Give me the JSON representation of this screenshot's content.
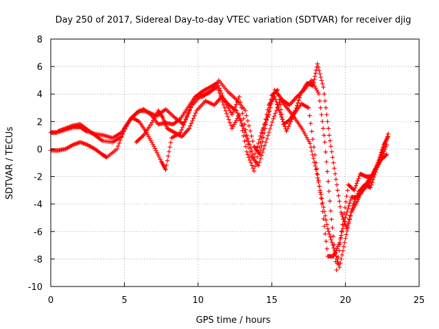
{
  "chart_data": {
    "type": "scatter",
    "title": "Day 250 of 2017, Sidereal Day-to-day VTEC variation (SDTVAR) for receiver djig",
    "xlabel": "GPS time / hours",
    "ylabel": "SDTVAR / TECUs",
    "xlim": [
      0,
      25
    ],
    "ylim": [
      -10,
      8
    ],
    "x_ticks": [
      "0",
      "5",
      "10",
      "15",
      "20",
      "25"
    ],
    "y_ticks": [
      "-10",
      "-8",
      "-6",
      "-4",
      "-2",
      "0",
      "2",
      "4",
      "6",
      "8"
    ],
    "grid": true,
    "marker": "+",
    "color": "#ff0000",
    "series": [
      {
        "name": "",
        "x": [
          0.0,
          0.4,
          1.0,
          1.6,
          2.0,
          2.4,
          3.0,
          3.6,
          4.2,
          4.8,
          5.3,
          5.8,
          6.3,
          6.8,
          7.3,
          7.8,
          8.3,
          8.8,
          9.3,
          9.8,
          10.3,
          10.8,
          11.3,
          11.8,
          12.3,
          12.8,
          13.3,
          13.8,
          14.3,
          14.8,
          15.2,
          15.7,
          16.2,
          16.7,
          17.2,
          17.7,
          18.2,
          18.6,
          19.0,
          19.4,
          19.8,
          20.2,
          20.6,
          21.0,
          21.4,
          21.8,
          22.2,
          22.6,
          22.9
        ],
        "y": [
          1.2,
          1.2,
          1.4,
          1.6,
          1.6,
          1.3,
          1.1,
          1.0,
          0.8,
          1.2,
          2.0,
          2.6,
          2.9,
          2.5,
          1.8,
          1.9,
          1.8,
          2.2,
          3.0,
          3.8,
          4.2,
          4.5,
          4.8,
          3.5,
          2.5,
          3.8,
          1.0,
          -0.6,
          1.2,
          2.5,
          4.3,
          3.6,
          3.2,
          3.8,
          4.3,
          5.0,
          4.0,
          0.5,
          -4.5,
          -8.8,
          -5.5,
          -2.6,
          -3.0,
          -1.8,
          -2.0,
          -2.0,
          -1.0,
          0.3,
          0.9
        ]
      },
      {
        "name": "",
        "x": [
          0.0,
          0.5,
          1.0,
          1.5,
          2.0,
          2.5,
          3.0,
          3.5,
          3.8,
          4.5,
          5.0,
          5.5,
          6.0,
          6.5,
          7.0,
          7.5,
          7.8,
          8.2,
          8.8,
          9.3,
          9.8,
          10.3,
          10.8,
          11.3,
          11.8,
          12.3,
          12.8,
          13.3,
          13.8,
          14.3,
          14.8,
          15.2,
          15.6,
          16.0,
          16.5,
          17.0,
          17.5,
          18.0,
          18.4,
          18.8,
          19.2,
          19.6,
          20.0,
          20.4,
          20.8,
          21.2,
          21.6,
          22.0,
          22.4,
          22.8
        ],
        "y": [
          -0.1,
          -0.1,
          0.0,
          0.3,
          0.5,
          0.3,
          0.0,
          -0.4,
          -0.6,
          0.0,
          1.5,
          2.3,
          2.0,
          1.2,
          0.2,
          -0.9,
          -1.5,
          0.8,
          1.2,
          2.5,
          3.8,
          3.8,
          4.2,
          4.5,
          3.0,
          1.5,
          2.5,
          -0.2,
          -1.6,
          0.8,
          3.2,
          3.8,
          2.5,
          1.3,
          2.5,
          3.3,
          3.0,
          -1.0,
          -4.0,
          -7.8,
          -7.8,
          -6.8,
          -5.0,
          -3.5,
          -3.5,
          -3.0,
          -2.5,
          -1.5,
          -0.8,
          -0.4
        ]
      },
      {
        "name": "",
        "x": [
          0.5,
          1.0,
          1.5,
          2.0,
          2.5,
          3.0,
          3.5,
          4.2,
          4.8,
          5.4,
          6.0,
          6.6,
          7.2,
          7.8,
          8.4,
          9.0,
          9.6,
          10.2,
          10.8,
          11.4,
          12.0,
          12.6,
          13.2,
          13.8,
          14.2,
          14.6,
          15.0,
          15.4,
          15.8,
          16.2,
          16.6,
          17.0,
          17.4,
          17.8,
          18.1,
          18.5,
          18.9,
          19.3,
          19.7,
          20.1,
          20.5,
          20.9,
          21.3,
          21.7,
          22.1,
          22.5,
          22.9
        ],
        "y": [
          1.3,
          1.5,
          1.7,
          1.8,
          1.4,
          1.0,
          0.6,
          0.5,
          0.9,
          2.2,
          2.8,
          2.7,
          2.4,
          2.9,
          2.3,
          1.8,
          3.2,
          3.9,
          4.1,
          5.0,
          4.2,
          3.6,
          2.8,
          0.2,
          -0.4,
          1.8,
          3.9,
          4.3,
          1.8,
          2.1,
          2.8,
          4.1,
          4.8,
          4.6,
          6.2,
          4.5,
          1.0,
          -1.8,
          -4.6,
          -5.8,
          -4.1,
          -3.1,
          -2.6,
          -2.8,
          -1.5,
          -0.2,
          1.1
        ]
      },
      {
        "name": "",
        "x": [
          5.8,
          6.3,
          6.8,
          7.3,
          7.6,
          7.9,
          8.4,
          8.9,
          9.4,
          9.9,
          10.5,
          11.1,
          11.6,
          12.1,
          12.6,
          13.1,
          13.6,
          14.1,
          14.6,
          15.1,
          15.6,
          16.1,
          16.6,
          17.1,
          17.6,
          18.0,
          18.4,
          18.8,
          19.2,
          19.6,
          20.0,
          20.4,
          20.8,
          21.2,
          21.6,
          22.0,
          22.4,
          22.8
        ],
        "y": [
          0.5,
          1.0,
          1.8,
          2.8,
          2.3,
          1.5,
          1.2,
          0.9,
          1.5,
          2.8,
          3.5,
          3.2,
          3.8,
          3.2,
          2.8,
          1.5,
          -0.5,
          -1.2,
          0.5,
          2.2,
          3.6,
          2.9,
          2.2,
          1.4,
          0.4,
          -1.5,
          -3.6,
          -5.8,
          -7.2,
          -8.6,
          -6.5,
          -4.6,
          -3.8,
          -2.9,
          -2.2,
          -1.6,
          -0.8,
          0.3
        ]
      }
    ]
  }
}
